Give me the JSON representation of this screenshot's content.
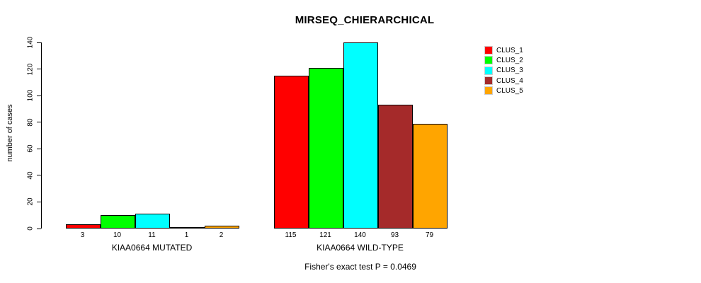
{
  "chart_data": {
    "type": "bar",
    "title": "MIRSEQ_CHIERARCHICAL",
    "ylabel": "number of cases",
    "xlabel": "",
    "ylim": [
      0,
      140
    ],
    "yticks": [
      0,
      20,
      40,
      60,
      80,
      100,
      120,
      140
    ],
    "grid": false,
    "legend_position": "right",
    "annotation": "Fisher's exact test P = 0.0469",
    "categories": [
      "KIAA0664 MUTATED",
      "KIAA0664 WILD-TYPE"
    ],
    "groups": [
      {
        "label": "KIAA0664 MUTATED",
        "values": [
          3,
          10,
          11,
          1,
          2
        ]
      },
      {
        "label": "KIAA0664 WILD-TYPE",
        "values": [
          115,
          121,
          140,
          93,
          79
        ]
      }
    ],
    "series": [
      {
        "name": "CLUS_1",
        "color": "#FF0000",
        "values": [
          3,
          115
        ]
      },
      {
        "name": "CLUS_2",
        "color": "#00FF00",
        "values": [
          10,
          121
        ]
      },
      {
        "name": "CLUS_3",
        "color": "#00FFFF",
        "values": [
          11,
          140
        ]
      },
      {
        "name": "CLUS_4",
        "color": "#A52A2A",
        "values": [
          1,
          93
        ]
      },
      {
        "name": "CLUS_5",
        "color": "#FFA500",
        "values": [
          2,
          79
        ]
      }
    ],
    "legend": [
      {
        "label": "CLUS_1",
        "color": "#FF0000"
      },
      {
        "label": "CLUS_2",
        "color": "#00FF00"
      },
      {
        "label": "CLUS_3",
        "color": "#00FFFF"
      },
      {
        "label": "CLUS_4",
        "color": "#A52A2A"
      },
      {
        "label": "CLUS_5",
        "color": "#FFA500"
      }
    ]
  }
}
